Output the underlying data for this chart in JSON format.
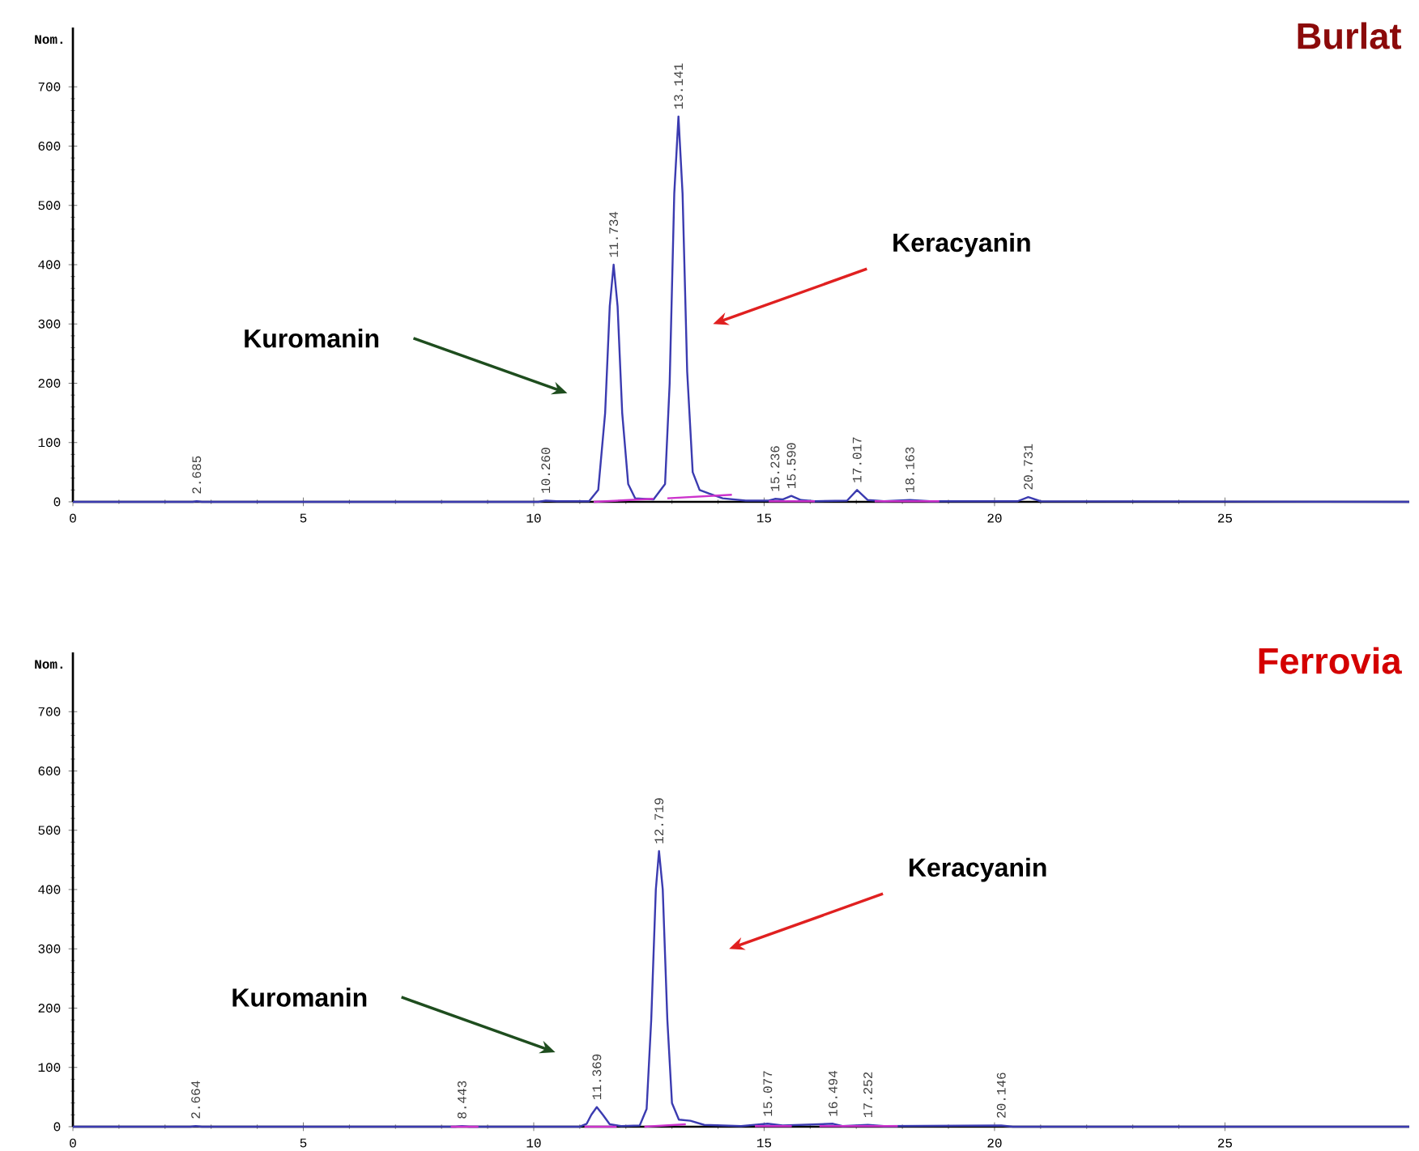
{
  "chart_data": [
    {
      "type": "line",
      "title": "Burlat",
      "ylabel": "Nom.",
      "xlim": [
        0,
        29
      ],
      "ylim": [
        0,
        800
      ],
      "xticks": [
        0,
        5,
        10,
        15,
        20,
        25
      ],
      "yticks": [
        0,
        100,
        200,
        300,
        400,
        500,
        600,
        700
      ],
      "color": "#8b0a0a",
      "series": [
        {
          "color": "#3b3bb0",
          "x": [
            0,
            2.6,
            2.685,
            2.8,
            10.1,
            10.26,
            10.5,
            11.2,
            11.4,
            11.55,
            11.65,
            11.734,
            11.82,
            11.92,
            12.05,
            12.2,
            12.6,
            12.85,
            12.95,
            13.05,
            13.141,
            13.23,
            13.33,
            13.45,
            13.6,
            13.8,
            14.1,
            14.6,
            15.1,
            15.236,
            15.4,
            15.59,
            15.8,
            16.1,
            16.8,
            17.017,
            17.25,
            17.6,
            18.163,
            18.6,
            20.5,
            20.731,
            21.0,
            29
          ],
          "values": [
            0,
            0,
            1,
            0,
            0,
            2,
            1,
            1,
            20,
            150,
            330,
            400,
            330,
            150,
            30,
            6,
            4,
            30,
            200,
            520,
            650,
            520,
            220,
            50,
            20,
            14,
            6,
            2,
            2,
            5,
            4,
            10,
            3,
            1,
            2,
            20,
            3,
            1,
            3,
            1,
            1,
            8,
            1,
            0
          ]
        },
        {
          "color": "#cc33cc",
          "x": [
            11.3,
            12.6,
            12.75,
            12.9,
            14.3,
            14.7,
            15.1,
            16.1,
            16.8,
            17.4,
            18.8
          ],
          "values": [
            0,
            5,
            null,
            6,
            12,
            null,
            1,
            1,
            null,
            1,
            1
          ]
        }
      ],
      "annotations": [
        "Kuromanin",
        "Keracyanin",
        {
          "text": "2.685",
          "x": 2.685,
          "y": 1
        },
        {
          "text": "10.260",
          "x": 10.26,
          "y": 2
        },
        {
          "text": "11.734",
          "x": 11.734,
          "y": 400
        },
        {
          "text": "13.141",
          "x": 13.141,
          "y": 650
        },
        {
          "text": "15.236",
          "x": 15.236,
          "y": 5
        },
        {
          "text": "15.590",
          "x": 15.59,
          "y": 10
        },
        {
          "text": "17.017",
          "x": 17.017,
          "y": 20
        },
        {
          "text": "18.163",
          "x": 18.163,
          "y": 3
        },
        {
          "text": "20.731",
          "x": 20.731,
          "y": 8
        }
      ]
    },
    {
      "type": "line",
      "title": "Ferrovia",
      "ylabel": "Nom.",
      "xlim": [
        0,
        29
      ],
      "ylim": [
        0,
        800
      ],
      "xticks": [
        0,
        5,
        10,
        15,
        20,
        25
      ],
      "yticks": [
        0,
        100,
        200,
        300,
        400,
        500,
        600,
        700
      ],
      "color": "#d40000",
      "series": [
        {
          "color": "#3b3bb0",
          "x": [
            0,
            2.55,
            2.664,
            2.8,
            8.3,
            8.443,
            8.6,
            11.0,
            11.15,
            11.25,
            11.369,
            11.5,
            11.65,
            11.9,
            12.3,
            12.45,
            12.55,
            12.65,
            12.719,
            12.8,
            12.9,
            13.0,
            13.15,
            13.4,
            13.7,
            14.5,
            15.077,
            15.4,
            16.494,
            16.7,
            17.252,
            17.6,
            20.146,
            20.4,
            29
          ],
          "values": [
            0,
            0,
            1,
            0,
            0,
            1,
            0,
            0,
            5,
            20,
            33,
            20,
            4,
            1,
            2,
            30,
            180,
            400,
            465,
            400,
            180,
            40,
            12,
            10,
            3,
            1,
            5,
            2,
            5,
            1,
            3,
            1,
            2,
            0,
            0
          ]
        },
        {
          "color": "#cc33cc",
          "x": [
            8.2,
            8.8,
            9.5,
            11.1,
            11.8,
            12.1,
            12.4,
            13.3,
            14.0,
            14.8,
            15.6,
            15.9,
            16.2,
            17.9
          ],
          "values": [
            0,
            0,
            null,
            0,
            0,
            null,
            0,
            4,
            null,
            1,
            1,
            null,
            1,
            1
          ]
        }
      ],
      "annotations": [
        "Kuromanin",
        "Keracyanin",
        {
          "text": "2.664",
          "x": 2.664,
          "y": 1
        },
        {
          "text": "8.443",
          "x": 8.443,
          "y": 1
        },
        {
          "text": "11.369",
          "x": 11.369,
          "y": 33
        },
        {
          "text": "12.719",
          "x": 12.719,
          "y": 465
        },
        {
          "text": "15.077",
          "x": 15.077,
          "y": 5
        },
        {
          "text": "16.494",
          "x": 16.494,
          "y": 5
        },
        {
          "text": "17.252",
          "x": 17.252,
          "y": 3
        },
        {
          "text": "20.146",
          "x": 20.146,
          "y": 2
        }
      ]
    }
  ]
}
